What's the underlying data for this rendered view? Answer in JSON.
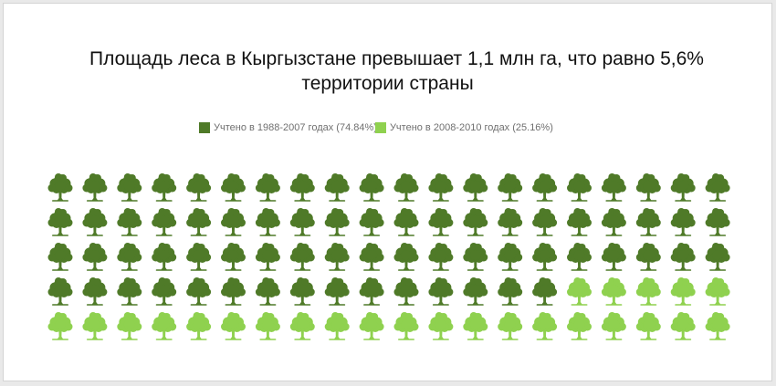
{
  "title_line1": "Площадь леса в Кыргызстане превышает 1,1 млн га, что равно 5,6%",
  "title_line2": "территории страны",
  "colors": {
    "dark_green": "#4f7a28",
    "light_green": "#8fd14f"
  },
  "chart_data": {
    "type": "pictogram",
    "icon": "tree-icon",
    "rows": 5,
    "columns": 20,
    "total_icons": 100,
    "series": [
      {
        "name": "Учтено в 1988-2007 годах (74.84%)",
        "percent": 74.84,
        "icons": 75,
        "color": "#4f7a28"
      },
      {
        "name": "Учтено в 2008-2010 годах (25.16%)",
        "percent": 25.16,
        "icons": 25,
        "color": "#8fd14f"
      }
    ],
    "legend_position": "top"
  }
}
